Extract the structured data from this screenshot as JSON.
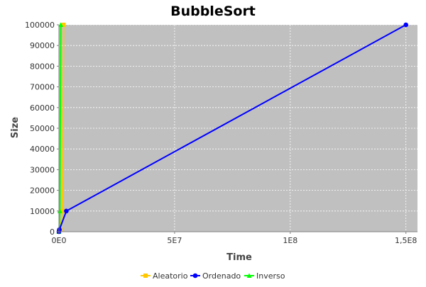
{
  "chart_data": {
    "type": "line",
    "title": "BubbleSort",
    "xlabel": "Time",
    "ylabel": "Size",
    "xlim": [
      0,
      155000000
    ],
    "ylim": [
      0,
      100000
    ],
    "x_ticks": [
      {
        "value": 0,
        "label": "0E0"
      },
      {
        "value": 50000000,
        "label": "5E7"
      },
      {
        "value": 100000000,
        "label": "1E8"
      },
      {
        "value": 150000000,
        "label": "1,5E8"
      }
    ],
    "y_ticks": [
      {
        "value": 0,
        "label": "0"
      },
      {
        "value": 10000,
        "label": "10000"
      },
      {
        "value": 20000,
        "label": "20000"
      },
      {
        "value": 30000,
        "label": "30000"
      },
      {
        "value": 40000,
        "label": "40000"
      },
      {
        "value": 50000,
        "label": "50000"
      },
      {
        "value": 60000,
        "label": "60000"
      },
      {
        "value": 70000,
        "label": "70000"
      },
      {
        "value": 80000,
        "label": "80000"
      },
      {
        "value": 90000,
        "label": "90000"
      },
      {
        "value": 100000,
        "label": "100000"
      }
    ],
    "grid": true,
    "legend_position": "bottom",
    "plot_background": "#c0c0c0",
    "series": [
      {
        "name": "Aleatorio",
        "color": "#ffc800",
        "marker": "square",
        "points": [
          {
            "x": 0,
            "y": 0
          },
          {
            "x": 600000,
            "y": 1000
          },
          {
            "x": 1500000,
            "y": 10000
          },
          {
            "x": 2000000,
            "y": 100000
          }
        ]
      },
      {
        "name": "Ordenado",
        "color": "#0000ff",
        "marker": "circle",
        "points": [
          {
            "x": 0,
            "y": 0
          },
          {
            "x": 200000,
            "y": 1000
          },
          {
            "x": 3200000,
            "y": 10000
          },
          {
            "x": 150000000,
            "y": 100000
          }
        ]
      },
      {
        "name": "Inverso",
        "color": "#00ff00",
        "marker": "triangle",
        "points": [
          {
            "x": 0,
            "y": 0
          },
          {
            "x": 100000,
            "y": 1000
          },
          {
            "x": 400000,
            "y": 10000
          },
          {
            "x": 800000,
            "y": 100000
          }
        ]
      }
    ]
  }
}
